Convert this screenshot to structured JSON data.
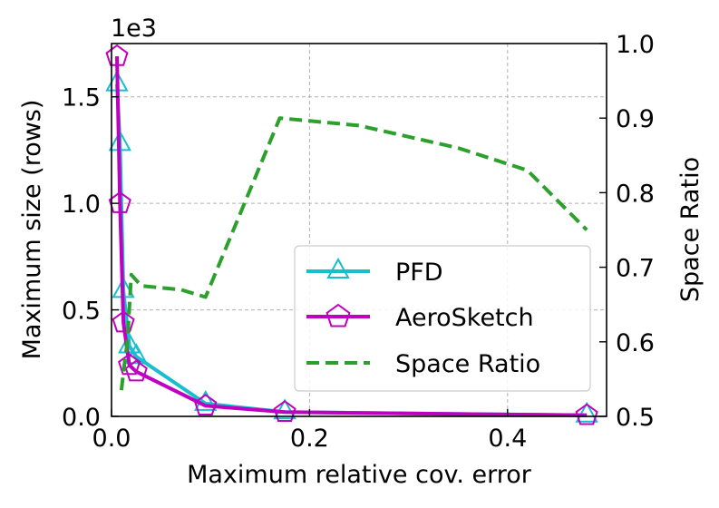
{
  "chart_data": {
    "type": "line",
    "x": [
      0.0055,
      0.0085,
      0.012,
      0.018,
      0.025,
      0.095,
      0.175,
      0.48
    ],
    "xlabel": "Maximum relative cov. error",
    "ylabel": "Maximum size (rows)",
    "y2label": "Space Ratio",
    "y_offset_label": "1e3",
    "xlim": [
      0,
      0.5
    ],
    "ylim": [
      0,
      1.75
    ],
    "y2lim": [
      0.5,
      1.0
    ],
    "xticks": [
      0.0,
      0.2,
      0.4
    ],
    "xtick_labels": [
      "0.0",
      "0.2",
      "0.4"
    ],
    "yticks": [
      0.0,
      0.5,
      1.0,
      1.5
    ],
    "ytick_labels": [
      "0.0",
      "0.5",
      "1.0",
      "1.5"
    ],
    "y2ticks": [
      0.5,
      0.6,
      0.7,
      0.8,
      0.9,
      1.0
    ],
    "y2tick_labels": [
      "0.5",
      "0.6",
      "0.7",
      "0.8",
      "0.9",
      "1.0"
    ],
    "grid": true,
    "legend_position": "lower-right",
    "series": [
      {
        "name": "PFD",
        "axis": "left",
        "color": "#17becf",
        "marker": "triangle",
        "linestyle": "solid",
        "x": [
          0.0055,
          0.0085,
          0.012,
          0.018,
          0.025,
          0.095,
          0.175,
          0.48
        ],
        "values": [
          1.56,
          1.28,
          0.59,
          0.33,
          0.28,
          0.06,
          0.02,
          0.005
        ]
      },
      {
        "name": "AeroSketch",
        "axis": "left",
        "color": "#c000c0",
        "marker": "pentagon",
        "linestyle": "solid",
        "x": [
          0.0055,
          0.0085,
          0.012,
          0.018,
          0.025,
          0.095,
          0.175,
          0.48
        ],
        "values": [
          1.69,
          1.0,
          0.44,
          0.24,
          0.21,
          0.05,
          0.02,
          0.005
        ]
      },
      {
        "name": "Space Ratio",
        "axis": "right",
        "color": "#2ca02c",
        "marker": "none",
        "linestyle": "dashed",
        "x": [
          0.01,
          0.013,
          0.016,
          0.02,
          0.03,
          0.07,
          0.095,
          0.17,
          0.25,
          0.35,
          0.42,
          0.48
        ],
        "values": [
          0.535,
          0.57,
          0.6,
          0.69,
          0.675,
          0.67,
          0.66,
          0.9,
          0.89,
          0.86,
          0.83,
          0.75
        ]
      }
    ]
  }
}
